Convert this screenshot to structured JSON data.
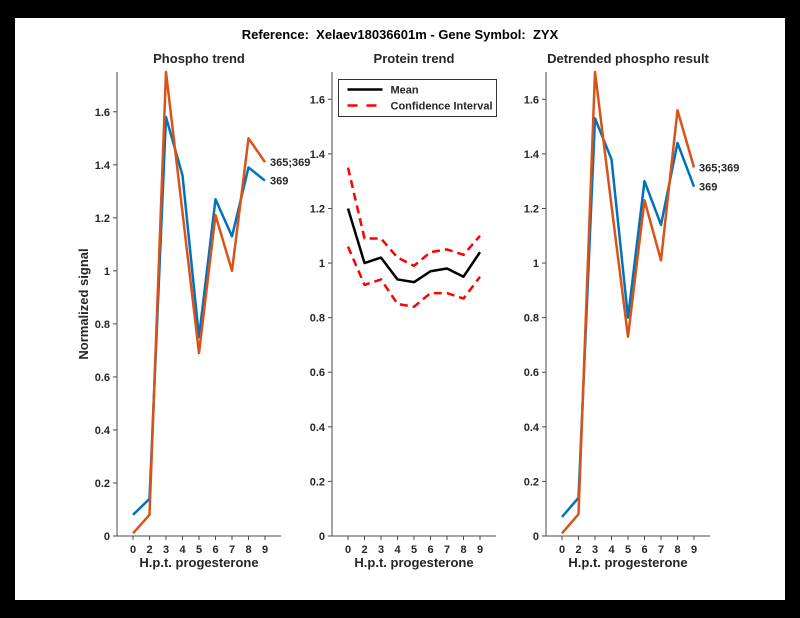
{
  "window": {
    "background": "#000000",
    "figure_background": "#ffffff"
  },
  "header": {
    "title": "Reference:  Xelaev18036601m - Gene Symbol:  ZYX"
  },
  "colors": {
    "blue": "#0072BD",
    "orange": "#D95319",
    "red": "#FF0000",
    "black": "#000000",
    "axis": "#4a4a4a",
    "text": "#262626"
  },
  "chart_data": [
    {
      "type": "line",
      "title": "Phospho trend",
      "xlabel": "H.p.t. progesterone",
      "ylabel": "Normalized signal",
      "x_tick_labels": [
        "0",
        "2",
        "3",
        "4",
        "5",
        "6",
        "7",
        "8",
        "9"
      ],
      "y_ticks": [
        0,
        0.2,
        0.4,
        0.6,
        0.8,
        1,
        1.2,
        1.4,
        1.6
      ],
      "ylim": [
        0,
        1.75
      ],
      "grid": false,
      "series": [
        {
          "name": "369",
          "color": "#0072BD",
          "style": "solid",
          "values": [
            0.08,
            0.14,
            1.58,
            1.36,
            0.75,
            1.27,
            1.13,
            1.39,
            1.34
          ]
        },
        {
          "name": "365;369",
          "color": "#D95319",
          "style": "solid",
          "values": [
            0.01,
            0.08,
            1.75,
            1.22,
            0.69,
            1.21,
            1.0,
            1.5,
            1.41
          ]
        }
      ],
      "end_labels": [
        {
          "text": "365;369",
          "value": 1.41
        },
        {
          "text": "369",
          "value": 1.34
        }
      ]
    },
    {
      "type": "line",
      "title": "Protein trend",
      "xlabel": "H.p.t. progesterone",
      "ylabel": "",
      "x_tick_labels": [
        "0",
        "2",
        "3",
        "4",
        "5",
        "6",
        "7",
        "8",
        "9"
      ],
      "y_ticks": [
        0,
        0.2,
        0.4,
        0.6,
        0.8,
        1,
        1.2,
        1.4,
        1.6
      ],
      "ylim": [
        0,
        1.7
      ],
      "grid": false,
      "legend": {
        "position": "northwest",
        "entries": [
          {
            "label": "Mean",
            "color": "#000000",
            "style": "solid"
          },
          {
            "label": "Confidence Interval",
            "color": "#FF0000",
            "style": "dashed"
          }
        ]
      },
      "series": [
        {
          "name": "Mean",
          "color": "#000000",
          "style": "solid",
          "values": [
            1.2,
            1.0,
            1.02,
            0.94,
            0.93,
            0.97,
            0.98,
            0.95,
            1.04
          ]
        },
        {
          "name": "Confidence Interval upper",
          "color": "#FF0000",
          "style": "dashed",
          "values": [
            1.35,
            1.09,
            1.09,
            1.02,
            0.99,
            1.04,
            1.05,
            1.03,
            1.1
          ]
        },
        {
          "name": "Confidence Interval lower",
          "color": "#FF0000",
          "style": "dashed",
          "values": [
            1.06,
            0.92,
            0.94,
            0.85,
            0.84,
            0.89,
            0.89,
            0.87,
            0.95
          ]
        }
      ],
      "end_labels": []
    },
    {
      "type": "line",
      "title": "Detrended phospho result",
      "xlabel": "H.p.t. progesterone",
      "ylabel": "",
      "x_tick_labels": [
        "0",
        "2",
        "3",
        "4",
        "5",
        "6",
        "7",
        "8",
        "9"
      ],
      "y_ticks": [
        0,
        0.2,
        0.4,
        0.6,
        0.8,
        1,
        1.2,
        1.4,
        1.6
      ],
      "ylim": [
        0,
        1.7
      ],
      "grid": false,
      "series": [
        {
          "name": "369",
          "color": "#0072BD",
          "style": "solid",
          "values": [
            0.07,
            0.14,
            1.53,
            1.38,
            0.8,
            1.3,
            1.14,
            1.44,
            1.28
          ]
        },
        {
          "name": "365;369",
          "color": "#D95319",
          "style": "solid",
          "values": [
            0.01,
            0.08,
            1.7,
            1.21,
            0.73,
            1.23,
            1.01,
            1.56,
            1.35
          ]
        }
      ],
      "end_labels": [
        {
          "text": "365;369",
          "value": 1.35
        },
        {
          "text": "369",
          "value": 1.28
        }
      ]
    }
  ]
}
